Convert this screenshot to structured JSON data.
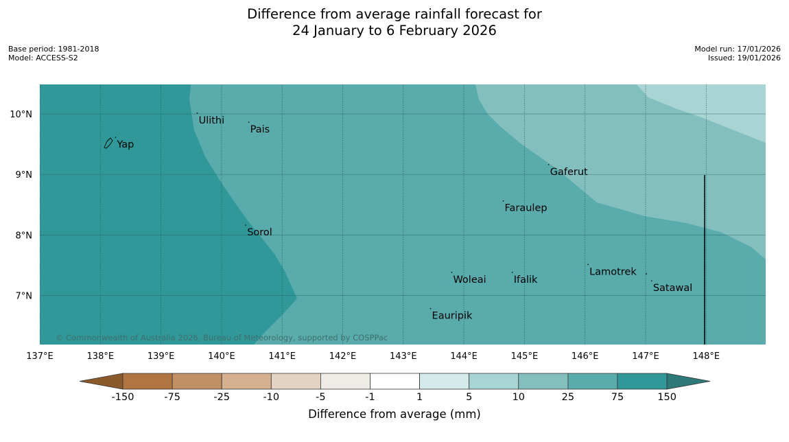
{
  "title": {
    "line1": "Difference from average rainfall forecast for",
    "line2": "24 January to 6 February 2026"
  },
  "meta_left": {
    "base_period": "Base period: 1981-2018",
    "model": "Model: ACCESS-S2"
  },
  "meta_right": {
    "model_run": "Model run: 17/01/2026",
    "issued": "Issued: 19/01/2026"
  },
  "map": {
    "lon_range": [
      137,
      149
    ],
    "lat_range": [
      6.2,
      10.5
    ],
    "lon_ticks": [
      "137°E",
      "138°E",
      "139°E",
      "140°E",
      "141°E",
      "142°E",
      "143°E",
      "144°E",
      "145°E",
      "146°E",
      "147°E",
      "148°E"
    ],
    "lon_values": [
      137,
      138,
      139,
      140,
      141,
      142,
      143,
      144,
      145,
      146,
      147,
      148
    ],
    "lat_ticks": [
      "10°N",
      "9°N",
      "8°N",
      "7°N"
    ],
    "lat_values": [
      10,
      9,
      8,
      7
    ],
    "copyright": "© Commonwealth of Australia 2026, Bureau of Meteorology, supported by COSPPac",
    "places": [
      {
        "name": "Yap",
        "lon": 138.25,
        "lat": 9.5
      },
      {
        "name": "Ulithi",
        "lon": 139.6,
        "lat": 9.9
      },
      {
        "name": "Pais",
        "lon": 140.45,
        "lat": 9.75
      },
      {
        "name": "Gaferut",
        "lon": 145.4,
        "lat": 9.05
      },
      {
        "name": "Faraulep",
        "lon": 144.65,
        "lat": 8.45
      },
      {
        "name": "Sorol",
        "lon": 140.4,
        "lat": 8.05
      },
      {
        "name": "Lamotrek",
        "lon": 146.05,
        "lat": 7.4
      },
      {
        "name": "Woleai",
        "lon": 143.8,
        "lat": 7.27
      },
      {
        "name": "Ifalik",
        "lon": 144.8,
        "lat": 7.27
      },
      {
        "name": "Satawal",
        "lon": 147.1,
        "lat": 7.13
      },
      {
        "name": "Eauripik",
        "lon": 143.45,
        "lat": 6.67
      }
    ]
  },
  "colorbar": {
    "title": "Difference from average (mm)",
    "tick_labels": [
      "-150",
      "-75",
      "-25",
      "-10",
      "-5",
      "-1",
      "1",
      "5",
      "10",
      "25",
      "75",
      "150"
    ],
    "colors": [
      "#8c5a2a",
      "#b07540",
      "#c19065",
      "#d5b091",
      "#e4d2c2",
      "#efebe6",
      "#ffffff",
      "#d4eaea",
      "#a9d4d4",
      "#84bfbf",
      "#5aabab",
      "#309898",
      "#2e7a7a"
    ],
    "fill_colors": {
      "level_75": "#309898",
      "level_25": "#5aabab",
      "level_10": "#84bfbf",
      "level_5": "#a9d4d4"
    }
  }
}
